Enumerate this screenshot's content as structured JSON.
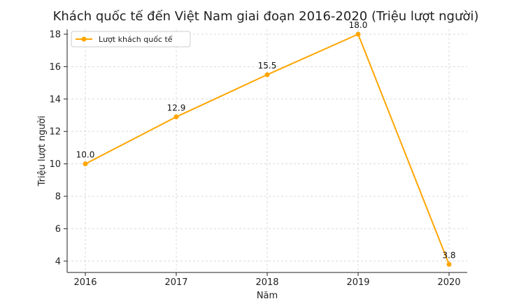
{
  "chart_data": {
    "type": "line",
    "title": "Khách quốc tế đến Việt Nam giai đoạn 2016-2020 (Triệu lượt người)",
    "xlabel": "Năm",
    "ylabel": "Triệu lượt người",
    "categories": [
      "2016",
      "2017",
      "2018",
      "2019",
      "2020"
    ],
    "series": [
      {
        "name": "Lượt khách quốc tế",
        "values": [
          10.0,
          12.9,
          15.5,
          18.0,
          3.8
        ],
        "labels": [
          "10.0",
          "12.9",
          "15.5",
          "18.0",
          "3.8"
        ],
        "color": "#FFA500"
      }
    ],
    "ylim": [
      3.3,
      18.3
    ],
    "yticks": [
      4,
      6,
      8,
      10,
      12,
      14,
      16,
      18
    ],
    "grid": true,
    "legend_position": "top-left"
  }
}
